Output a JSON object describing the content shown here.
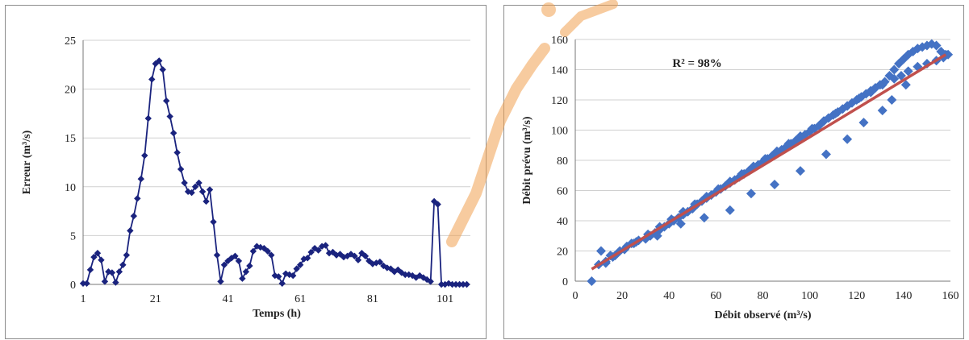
{
  "colors": {
    "series": "#1a237e",
    "scatter": "#4472c4",
    "fit": "#c0504d",
    "grid": "#d0d0d0",
    "watermark": "#f0a050"
  },
  "chart_data": [
    {
      "type": "line",
      "ylabel": "Erreur (m³/s)",
      "xlabel": "Temps (h)",
      "xlim": [
        1,
        108
      ],
      "ylim": [
        0,
        25
      ],
      "x_ticks": [
        1,
        21,
        41,
        61,
        81,
        101
      ],
      "y_ticks": [
        0,
        5,
        10,
        15,
        20,
        25
      ],
      "grid": "horizontal",
      "marker": "diamond",
      "series": [
        {
          "x": [
            1,
            2,
            3,
            4,
            5,
            6,
            7,
            8,
            9,
            10,
            11,
            12,
            13,
            14,
            15,
            16,
            17,
            18,
            19,
            20,
            21,
            22,
            23,
            24,
            25,
            26,
            27,
            28,
            29,
            30,
            31,
            32,
            33,
            34,
            35,
            36,
            37,
            38,
            39,
            40,
            41,
            42,
            43,
            44,
            45,
            46,
            47,
            48,
            49,
            50,
            51,
            52,
            53,
            54,
            55,
            56,
            57,
            58,
            59,
            60,
            61,
            62,
            63,
            64,
            65,
            66,
            67,
            68,
            69,
            70,
            71,
            72,
            73,
            74,
            75,
            76,
            77,
            78,
            79,
            80,
            81,
            82,
            83,
            84,
            85,
            86,
            87,
            88,
            89,
            90,
            91,
            92,
            93,
            94,
            95,
            96,
            97,
            98,
            99,
            100,
            101,
            102,
            103,
            104,
            105,
            106,
            107
          ],
          "y": [
            0.1,
            0.1,
            1.5,
            2.8,
            3.2,
            2.5,
            0.3,
            1.3,
            1.2,
            0.2,
            1.3,
            2,
            3,
            5.5,
            7,
            8.8,
            10.8,
            13.2,
            17,
            21,
            22.6,
            22.9,
            22,
            18.8,
            17.2,
            15.5,
            13.5,
            11.8,
            10.4,
            9.5,
            9.4,
            10,
            10.4,
            9.5,
            8.5,
            9.7,
            6.4,
            3,
            0.3,
            2,
            2.4,
            2.7,
            2.9,
            2.4,
            0.6,
            1.3,
            1.9,
            3.4,
            3.9,
            3.8,
            3.7,
            3.4,
            3,
            0.9,
            0.8,
            0.1,
            1.1,
            1,
            0.9,
            1.6,
            2,
            2.6,
            2.7,
            3.3,
            3.7,
            3.5,
            3.9,
            4,
            3.2,
            3.3,
            3,
            3.1,
            2.8,
            2.9,
            3.1,
            2.9,
            2.5,
            3.2,
            2.9,
            2.4,
            2.1,
            2.2,
            2.3,
            1.9,
            1.7,
            1.6,
            1.3,
            1.5,
            1.2,
            1,
            1,
            0.9,
            0.7,
            0.9,
            0.7,
            0.5,
            0.3,
            8.5,
            8.2,
            0,
            0,
            0.1,
            0,
            0,
            0,
            0,
            0
          ]
        }
      ]
    },
    {
      "type": "scatter",
      "ylabel": "Débit prévu (m³/s)",
      "xlabel": "Débit observé (m³/s)",
      "xlim": [
        0,
        160
      ],
      "ylim": [
        0,
        160
      ],
      "x_ticks": [
        0,
        20,
        40,
        60,
        80,
        100,
        120,
        140,
        160
      ],
      "y_ticks": [
        0,
        20,
        40,
        60,
        80,
        100,
        120,
        140,
        160
      ],
      "grid": "horizontal",
      "annotation": "R² = 98%",
      "marker": "diamond",
      "series": [
        {
          "x": [
            7,
            11,
            13,
            16,
            19,
            22,
            25,
            27,
            30,
            32,
            34,
            36,
            38,
            40,
            42,
            44,
            46,
            48,
            50,
            52,
            54,
            56,
            58,
            60,
            62,
            64,
            66,
            68,
            70,
            72,
            74,
            76,
            78,
            80,
            82,
            84,
            86,
            88,
            90,
            92,
            94,
            96,
            98,
            100,
            102,
            104,
            106,
            108,
            110,
            112,
            114,
            116,
            118,
            120,
            122,
            124,
            126,
            128,
            130,
            132,
            134,
            136,
            138,
            140,
            142,
            144,
            146,
            148,
            150,
            152,
            154,
            156,
            158,
            10,
            13,
            17,
            21,
            26,
            31,
            36,
            41,
            46,
            51,
            56,
            61,
            66,
            71,
            76,
            81,
            86,
            91,
            96,
            101,
            106,
            111,
            116,
            121,
            126,
            131,
            136,
            139,
            142,
            146,
            150,
            154,
            157,
            159,
            15,
            24,
            35,
            45,
            55,
            66,
            75,
            85,
            96,
            107,
            116,
            123,
            131,
            135,
            141
          ],
          "y": [
            0,
            20,
            12,
            16,
            20,
            23,
            25,
            27,
            28,
            30,
            32,
            34,
            36,
            38,
            40,
            42,
            44,
            46,
            48,
            51,
            53,
            55,
            57,
            59,
            61,
            63,
            65,
            67,
            69,
            71,
            73,
            75,
            77,
            79,
            81,
            83,
            85,
            87,
            89,
            91,
            93,
            95,
            97,
            99,
            101,
            103,
            106,
            108,
            110,
            112,
            114,
            116,
            118,
            120,
            122,
            124,
            126,
            128,
            130,
            132,
            136,
            140,
            144,
            147,
            150,
            152,
            154,
            155,
            156,
            157,
            156,
            152,
            150,
            11,
            13,
            17,
            21,
            26,
            31,
            36,
            41,
            46,
            51,
            56,
            61,
            66,
            71,
            76,
            81,
            86,
            91,
            96,
            101,
            106,
            111,
            116,
            121,
            125,
            130,
            134,
            136,
            139,
            142,
            144,
            146,
            148,
            150,
            17,
            25,
            30,
            38,
            42,
            47,
            58,
            64,
            73,
            84,
            94,
            105,
            113,
            120,
            130
          ]
        }
      ],
      "fit_line": {
        "x": [
          7,
          158
        ],
        "y": [
          8,
          150
        ]
      }
    }
  ]
}
